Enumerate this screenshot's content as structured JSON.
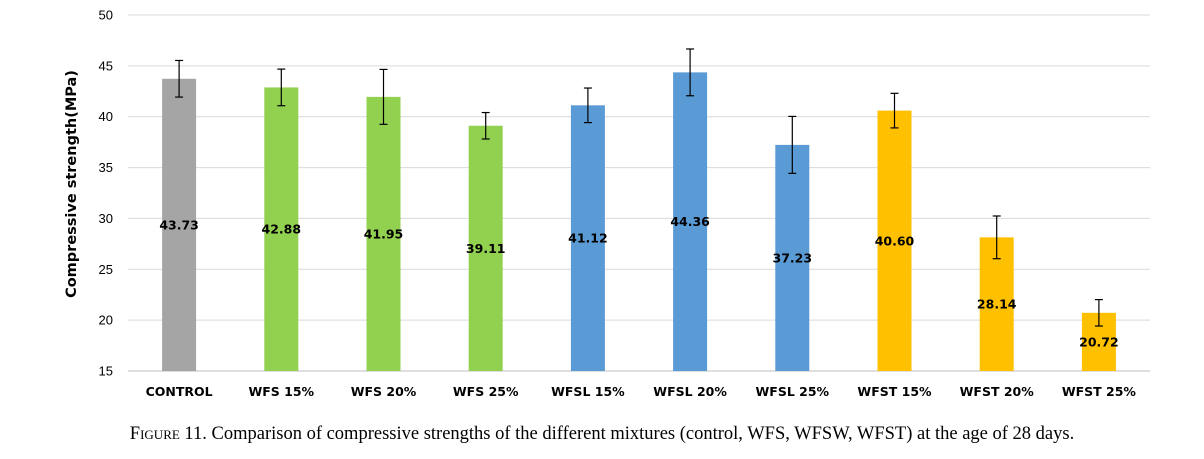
{
  "caption": {
    "label": "Figure 11.",
    "text": " Comparison of compressive strengths of the different mixtures (control, WFS, WFSW, WFST) at the age of 28 days."
  },
  "chart_data": {
    "type": "bar",
    "ylabel": "Compressive strength(MPa)",
    "xlabel": "",
    "ylim": [
      15,
      50
    ],
    "yticks": [
      15,
      20,
      25,
      30,
      35,
      40,
      45,
      50
    ],
    "grid": true,
    "categories": [
      "CONTROL",
      "WFS 15%",
      "WFS 20%",
      "WFS 25%",
      "WFSL 15%",
      "WFSL 20%",
      "WFSL 25%",
      "WFST 15%",
      "WFST 20%",
      "WFST 25%"
    ],
    "values": [
      43.73,
      42.88,
      41.95,
      39.11,
      41.12,
      44.36,
      37.23,
      40.6,
      28.14,
      20.72
    ],
    "value_labels": [
      "43.73",
      "42.88",
      "41.95",
      "39.11",
      "41.12",
      "44.36",
      "37.23",
      "40.60",
      "28.14",
      "20.72"
    ],
    "error": [
      1.8,
      1.8,
      2.7,
      1.3,
      1.7,
      2.3,
      2.8,
      1.7,
      2.1,
      1.3
    ],
    "colors": [
      "#a5a5a5",
      "#92d050",
      "#92d050",
      "#92d050",
      "#5b9bd5",
      "#5b9bd5",
      "#5b9bd5",
      "#ffc000",
      "#ffc000",
      "#ffc000"
    ]
  }
}
